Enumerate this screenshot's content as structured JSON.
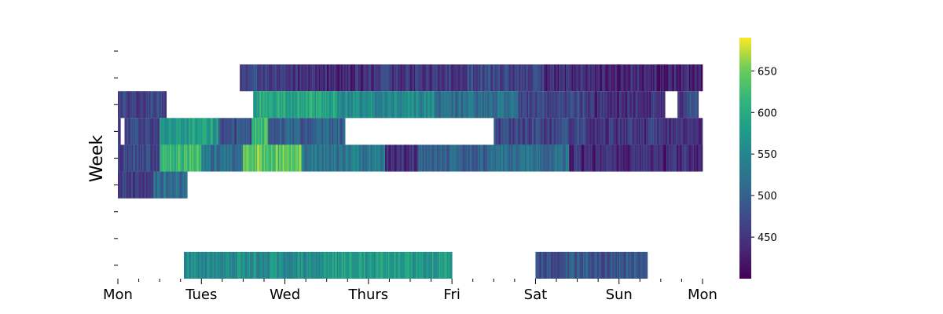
{
  "chart_data": {
    "type": "heatmap",
    "title": "",
    "xlabel": "",
    "ylabel": "Week",
    "x_tick_labels": [
      "Mon",
      "Tues",
      "Wed",
      "Thurs",
      "Fri",
      "Sat",
      "Sun",
      "Mon"
    ],
    "x_range_days": [
      0,
      7
    ],
    "rows": 9,
    "colorbar": {
      "colormap": "viridis",
      "min": 400,
      "max": 690,
      "ticks": [
        450,
        500,
        550,
        600,
        650
      ],
      "tick_labels": [
        "450",
        "500",
        "550",
        "600",
        "650"
      ]
    },
    "row_profiles": [
      {
        "row": 0,
        "segments": []
      },
      {
        "row": 1,
        "segments": [
          {
            "start": 1.46,
            "end": 2.1,
            "value": 470
          },
          {
            "start": 2.1,
            "end": 3.0,
            "value": 440
          },
          {
            "start": 3.0,
            "end": 4.1,
            "value": 455
          },
          {
            "start": 4.1,
            "end": 5.1,
            "value": 470
          },
          {
            "start": 5.1,
            "end": 6.2,
            "value": 440
          },
          {
            "start": 6.2,
            "end": 7.0,
            "value": 430
          }
        ]
      },
      {
        "row": 2,
        "segments": [
          {
            "start": 0.0,
            "end": 0.58,
            "value": 470
          },
          {
            "start": 1.62,
            "end": 2.6,
            "value": 590
          },
          {
            "start": 2.6,
            "end": 3.8,
            "value": 560
          },
          {
            "start": 3.8,
            "end": 4.8,
            "value": 520
          },
          {
            "start": 4.8,
            "end": 5.6,
            "value": 470
          },
          {
            "start": 5.6,
            "end": 6.55,
            "value": 445
          },
          {
            "start": 6.7,
            "end": 6.8,
            "value": 460
          },
          {
            "start": 6.8,
            "end": 6.95,
            "value": 470
          }
        ]
      },
      {
        "row": 3,
        "segments": [
          {
            "start": 0.0,
            "end": 0.03,
            "value": 450
          },
          {
            "start": 0.08,
            "end": 0.5,
            "value": 470
          },
          {
            "start": 0.5,
            "end": 1.2,
            "value": 580
          },
          {
            "start": 1.2,
            "end": 1.6,
            "value": 480
          },
          {
            "start": 1.6,
            "end": 1.8,
            "value": 620
          },
          {
            "start": 1.8,
            "end": 2.72,
            "value": 500
          },
          {
            "start": 4.5,
            "end": 5.6,
            "value": 470
          },
          {
            "start": 5.6,
            "end": 7.0,
            "value": 450
          }
        ]
      },
      {
        "row": 4,
        "segments": [
          {
            "start": 0.0,
            "end": 0.5,
            "value": 470
          },
          {
            "start": 0.5,
            "end": 1.0,
            "value": 620
          },
          {
            "start": 1.0,
            "end": 1.5,
            "value": 520
          },
          {
            "start": 1.5,
            "end": 2.2,
            "value": 640
          },
          {
            "start": 2.2,
            "end": 3.2,
            "value": 530
          },
          {
            "start": 3.2,
            "end": 3.6,
            "value": 440
          },
          {
            "start": 3.6,
            "end": 4.5,
            "value": 500
          },
          {
            "start": 4.5,
            "end": 5.4,
            "value": 520
          },
          {
            "start": 5.4,
            "end": 7.0,
            "value": 440
          }
        ]
      },
      {
        "row": 5,
        "segments": [
          {
            "start": 0.0,
            "end": 0.42,
            "value": 460
          },
          {
            "start": 0.42,
            "end": 0.83,
            "value": 520
          }
        ]
      },
      {
        "row": 6,
        "segments": []
      },
      {
        "row": 7,
        "segments": []
      },
      {
        "row": 8,
        "segments": [
          {
            "start": 0.79,
            "end": 2.5,
            "value": 560
          },
          {
            "start": 2.5,
            "end": 4.0,
            "value": 580
          },
          {
            "start": 5.0,
            "end": 6.34,
            "value": 490
          }
        ]
      }
    ],
    "grid": false,
    "legend": "colorbar-right"
  }
}
